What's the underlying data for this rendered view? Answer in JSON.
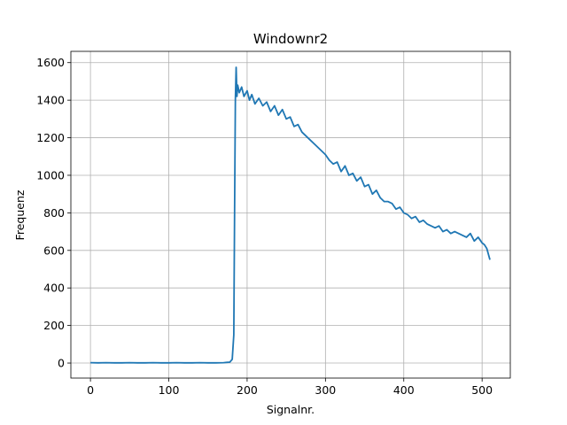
{
  "chart_data": {
    "type": "line",
    "title": "Windownr2",
    "xlabel": "Signalnr.",
    "ylabel": "Frequenz",
    "xlim": [
      -25,
      536
    ],
    "ylim": [
      -80,
      1660
    ],
    "xticks": [
      0,
      100,
      200,
      300,
      400,
      500
    ],
    "yticks": [
      0,
      200,
      400,
      600,
      800,
      1000,
      1200,
      1400,
      1600
    ],
    "grid": true,
    "color": "#1f77b4",
    "series": [
      {
        "x": [
          0,
          10,
          20,
          30,
          40,
          50,
          60,
          70,
          80,
          90,
          100,
          110,
          120,
          130,
          140,
          150,
          160,
          170,
          178,
          181,
          183,
          184,
          185,
          186,
          187,
          188,
          190,
          193,
          196,
          200,
          203,
          206,
          210,
          215,
          220,
          225,
          230,
          235,
          240,
          245,
          250,
          255,
          260,
          265,
          270,
          275,
          280,
          285,
          290,
          295,
          300,
          305,
          310,
          315,
          320,
          325,
          330,
          335,
          340,
          345,
          350,
          355,
          360,
          365,
          370,
          375,
          380,
          385,
          390,
          395,
          400,
          405,
          410,
          415,
          420,
          425,
          430,
          435,
          440,
          445,
          450,
          455,
          460,
          465,
          470,
          475,
          480,
          485,
          490,
          495,
          500,
          503,
          506,
          508,
          510
        ],
        "values": [
          2,
          1,
          2,
          1,
          1,
          2,
          1,
          1,
          2,
          1,
          1,
          2,
          1,
          1,
          2,
          1,
          1,
          2,
          5,
          20,
          150,
          800,
          1400,
          1575,
          1420,
          1480,
          1440,
          1470,
          1420,
          1450,
          1400,
          1430,
          1380,
          1410,
          1370,
          1390,
          1340,
          1370,
          1320,
          1350,
          1300,
          1310,
          1260,
          1270,
          1230,
          1210,
          1190,
          1170,
          1150,
          1130,
          1110,
          1080,
          1060,
          1070,
          1020,
          1050,
          1000,
          1010,
          970,
          990,
          940,
          950,
          900,
          920,
          880,
          860,
          860,
          850,
          820,
          830,
          800,
          790,
          770,
          780,
          750,
          760,
          740,
          730,
          720,
          730,
          700,
          710,
          690,
          700,
          690,
          680,
          670,
          690,
          650,
          670,
          640,
          630,
          610,
          580,
          550
        ]
      }
    ]
  }
}
